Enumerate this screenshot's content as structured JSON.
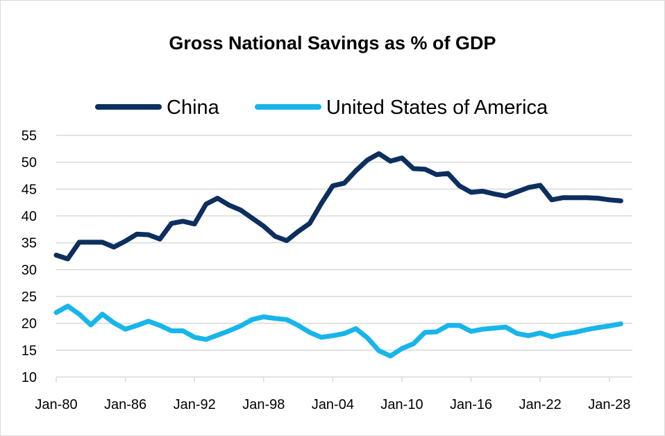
{
  "chart_data": {
    "type": "line",
    "title": "Gross National Savings as % of GDP",
    "xlabel": "",
    "ylabel": "",
    "ylim": [
      10,
      55
    ],
    "yticks": [
      10,
      15,
      20,
      25,
      30,
      35,
      40,
      45,
      50,
      55
    ],
    "x_tick_labels": [
      "Jan-80",
      "Jan-86",
      "Jan-92",
      "Jan-98",
      "Jan-04",
      "Jan-10",
      "Jan-16",
      "Jan-22",
      "Jan-28"
    ],
    "x_tick_years": [
      1980,
      1986,
      1992,
      1998,
      2004,
      2010,
      2016,
      2022,
      2028
    ],
    "x_range": [
      1980,
      2030
    ],
    "grid": true,
    "legend_position": "top",
    "x": [
      1980,
      1981,
      1982,
      1983,
      1984,
      1985,
      1986,
      1987,
      1988,
      1989,
      1990,
      1991,
      1992,
      1993,
      1994,
      1995,
      1996,
      1997,
      1998,
      1999,
      2000,
      2001,
      2002,
      2003,
      2004,
      2005,
      2006,
      2007,
      2008,
      2009,
      2010,
      2011,
      2012,
      2013,
      2014,
      2015,
      2016,
      2017,
      2018,
      2019,
      2020,
      2021,
      2022,
      2023,
      2024,
      2025,
      2026,
      2027,
      2028,
      2029
    ],
    "series": [
      {
        "name": "China",
        "color": "#0d2f5e",
        "values": [
          32.7,
          32.0,
          35.1,
          35.1,
          35.1,
          34.2,
          35.3,
          36.6,
          36.5,
          35.7,
          38.6,
          39.0,
          38.5,
          42.2,
          43.3,
          42.0,
          41.1,
          39.6,
          38.1,
          36.2,
          35.4,
          37.1,
          38.6,
          42.3,
          45.6,
          46.1,
          48.4,
          50.4,
          51.6,
          50.2,
          50.8,
          48.8,
          48.7,
          47.7,
          47.9,
          45.6,
          44.4,
          44.6,
          44.1,
          43.7,
          44.5,
          45.3,
          45.7,
          43.0,
          43.4,
          43.4,
          43.4,
          43.3,
          43.0,
          42.8
        ]
      },
      {
        "name": "United States of America",
        "color": "#18b5ea",
        "values": [
          22.0,
          23.2,
          21.7,
          19.7,
          21.7,
          20.1,
          18.9,
          19.6,
          20.4,
          19.6,
          18.6,
          18.6,
          17.4,
          17.0,
          17.8,
          18.6,
          19.5,
          20.7,
          21.2,
          20.9,
          20.7,
          19.6,
          18.3,
          17.4,
          17.7,
          18.1,
          19.0,
          17.3,
          14.9,
          13.9,
          15.3,
          16.2,
          18.3,
          18.4,
          19.6,
          19.6,
          18.5,
          18.9,
          19.1,
          19.3,
          18.1,
          17.7,
          18.2,
          17.5,
          18.0,
          18.3,
          18.8,
          19.2,
          19.5,
          19.9
        ]
      }
    ]
  }
}
